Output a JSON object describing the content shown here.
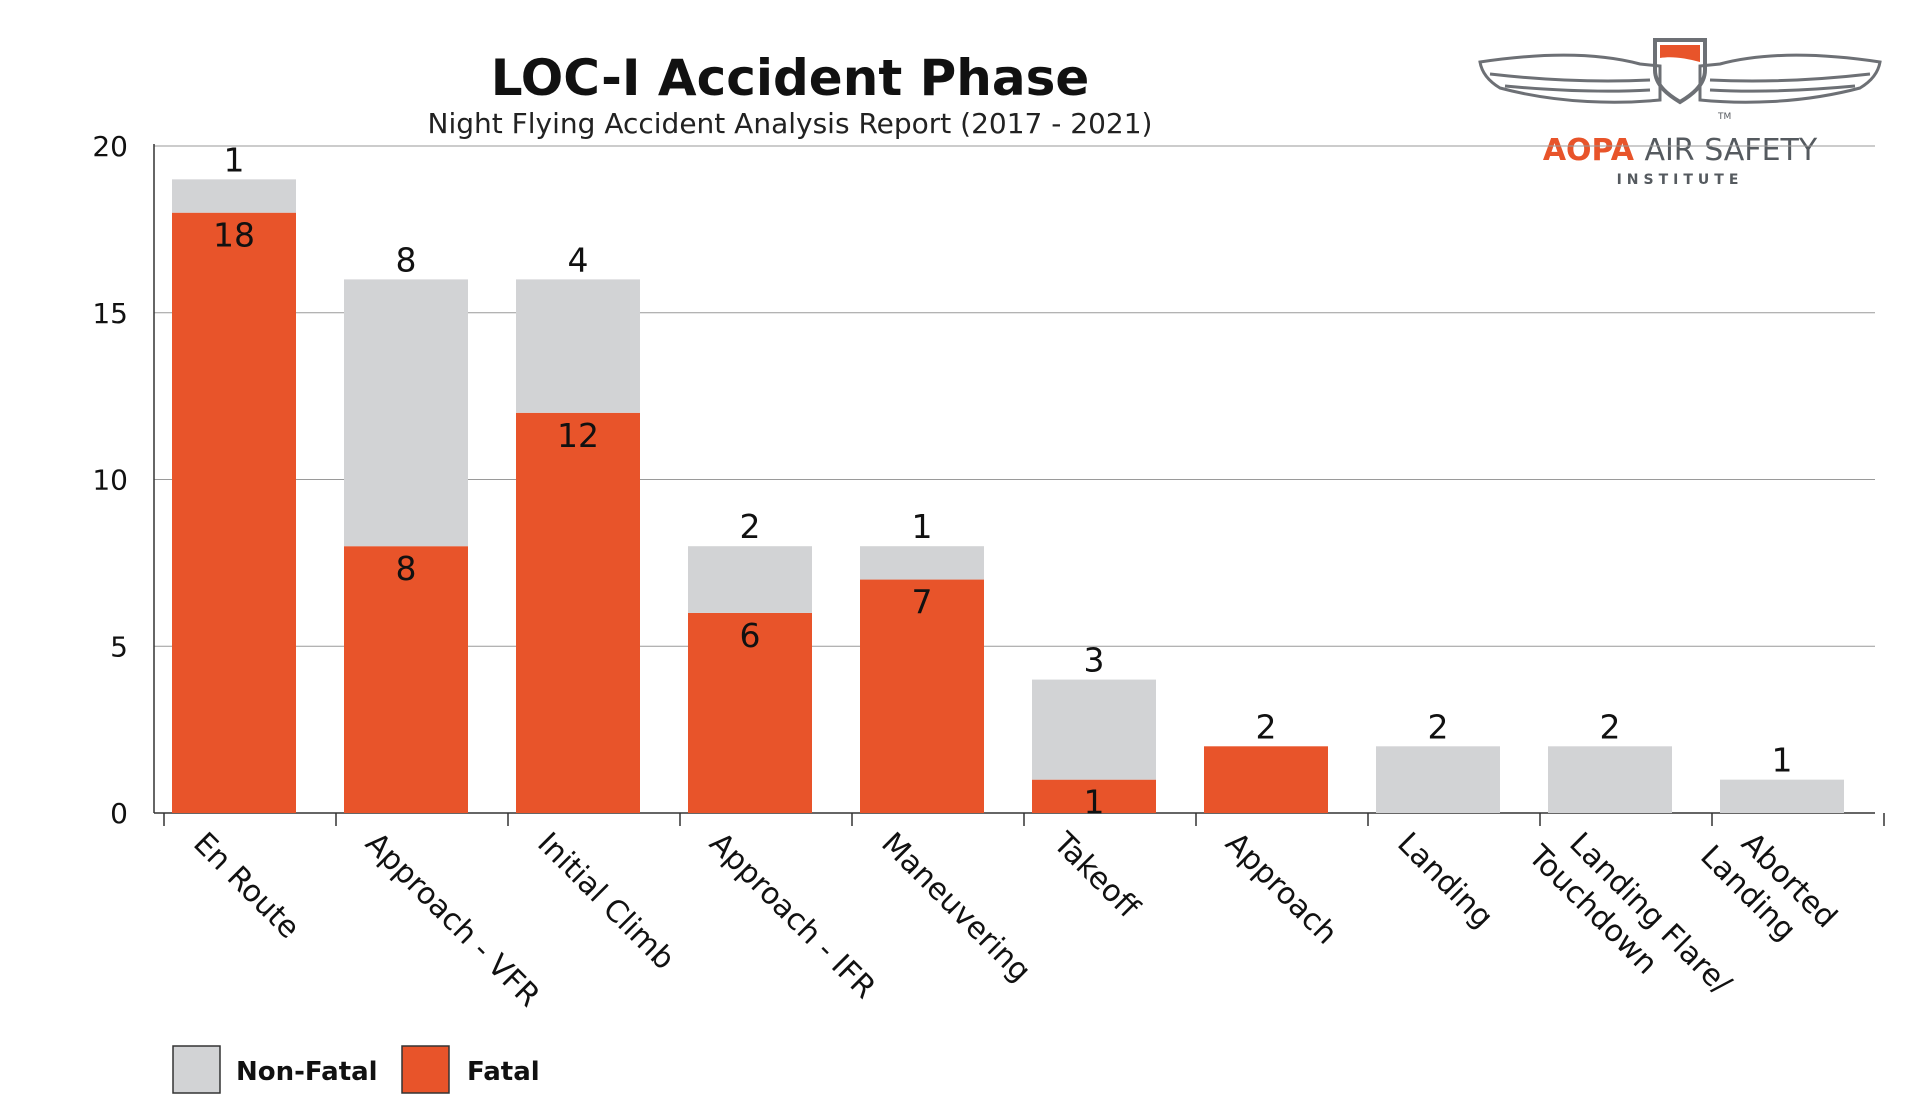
{
  "chart_data": {
    "type": "bar",
    "stacked": true,
    "title": "LOC-I Accident Phase",
    "subtitle": "Night Flying Accident Analysis Report (2017 - 2021)",
    "xlabel": "",
    "ylabel": "",
    "ylim": [
      0,
      20
    ],
    "yticks": [
      "0",
      "5",
      "10",
      "15",
      "20"
    ],
    "grid": true,
    "legend_position": "bottom-left",
    "categories": [
      "En Route",
      "Approach - VFR",
      "Initial Climb",
      "Approach - IFR",
      "Maneuvering",
      "Takeoff",
      "Approach",
      "Landing",
      "Landing Flare/ Touchdown",
      "Aborted Landing"
    ],
    "series": [
      {
        "name": "Fatal",
        "color": "#e8542a",
        "values": [
          18,
          8,
          12,
          6,
          7,
          1,
          2,
          0,
          0,
          0
        ]
      },
      {
        "name": "Non-Fatal",
        "color": "#d2d3d5",
        "values": [
          1,
          8,
          4,
          2,
          1,
          3,
          0,
          2,
          2,
          1
        ]
      }
    ]
  },
  "legend": [
    {
      "label": "Non-Fatal",
      "color": "#d2d3d5"
    },
    {
      "label": "Fatal",
      "color": "#e8542a"
    }
  ],
  "logo": {
    "brand": "AOPA",
    "name": "AIR SAFETY",
    "sub": "INSTITUTE",
    "tm": "TM",
    "brand_color": "#e8542a",
    "text_color": "#555a5f"
  }
}
